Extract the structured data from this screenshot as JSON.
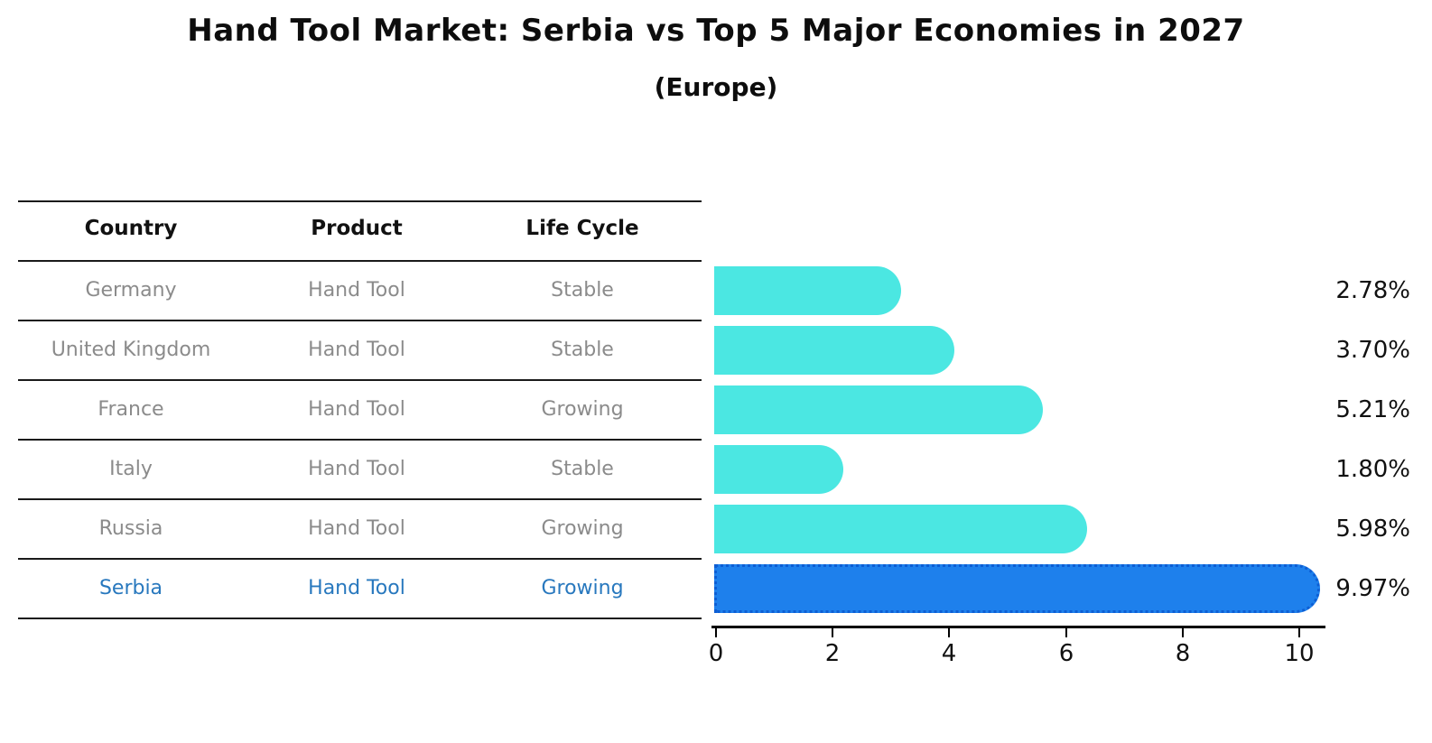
{
  "title": "Hand Tool Market: Serbia vs Top 5 Major Economies in 2027",
  "subtitle": "(Europe)",
  "table": {
    "text_color": "#8b8b8b",
    "header_color": "#111111",
    "headers": [
      "Country",
      "Product",
      "Life Cycle"
    ],
    "rows": [
      {
        "country": "Germany",
        "product": "Hand Tool",
        "life_cycle": "Stable",
        "highlight": false
      },
      {
        "country": "United Kingdom",
        "product": "Hand Tool",
        "life_cycle": "Stable",
        "highlight": false
      },
      {
        "country": "France",
        "product": "Hand Tool",
        "life_cycle": "Growing",
        "highlight": false
      },
      {
        "country": "Italy",
        "product": "Hand Tool",
        "life_cycle": "Stable",
        "highlight": false
      },
      {
        "country": "Russia",
        "product": "Hand Tool",
        "life_cycle": "Growing",
        "highlight": false
      },
      {
        "country": "Serbia",
        "product": "Hand Tool",
        "life_cycle": "Growing",
        "highlight": true
      }
    ]
  },
  "chart_data": {
    "type": "bar",
    "orientation": "horizontal",
    "title": "Hand Tool Market: Serbia vs Top 5 Major Economies in 2027",
    "subtitle": "(Europe)",
    "categories": [
      "Germany",
      "United Kingdom",
      "France",
      "Italy",
      "Russia",
      "Serbia"
    ],
    "values": [
      2.78,
      3.7,
      5.21,
      1.8,
      5.98,
      9.97
    ],
    "value_labels": [
      "2.78%",
      "3.70%",
      "5.21%",
      "1.80%",
      "5.98%",
      "9.97%"
    ],
    "x_ticks": [
      "0",
      "2",
      "4",
      "6",
      "8",
      "10"
    ],
    "xlim": [
      0,
      10.5
    ],
    "grid": false,
    "legend": false,
    "bar_color": "#4be7e2",
    "highlight_index": 5,
    "highlight_color": "#1e80ec",
    "highlight_border_color": "#0d5ed4",
    "highlight_text_color": "#2878be",
    "axis_color": "#000000"
  }
}
